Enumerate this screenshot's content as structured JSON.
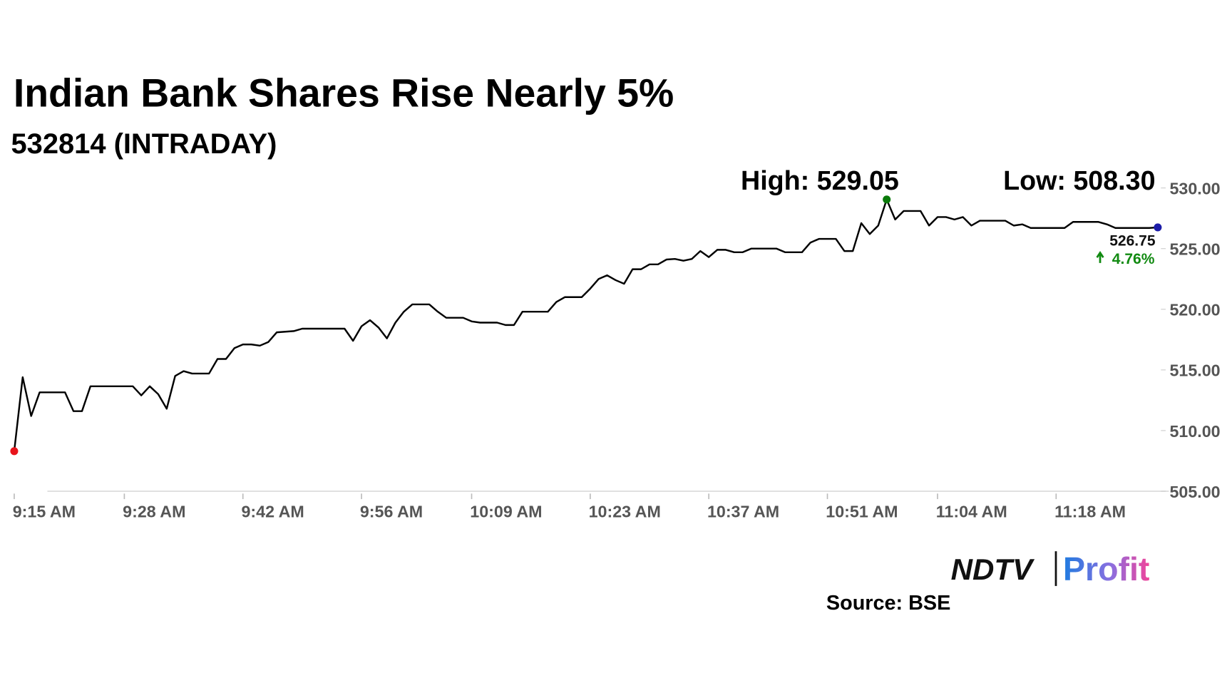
{
  "chart_data": {
    "type": "line",
    "title": "Indian Bank Shares Rise Nearly 5%",
    "subtitle": "532814 (INTRADAY)",
    "high_label": "High: 529.05",
    "low_label": "Low: 508.30",
    "last_label": "526.75",
    "change_label": "4.76%",
    "logo": [
      "NDTV",
      "Profit"
    ],
    "source": "Source: BSE",
    "color": "#000000",
    "marker_colors": {
      "start": "#e8141b",
      "high": "#0a7a0a",
      "last": "#1c1ca8"
    },
    "change_color": "#118a11",
    "categories": [
      "9:15 AM",
      null,
      null,
      null,
      null,
      null,
      null,
      null,
      null,
      null,
      null,
      null,
      null,
      "9:28 AM",
      null,
      null,
      null,
      null,
      null,
      null,
      null,
      null,
      null,
      null,
      null,
      null,
      null,
      "9:42 AM",
      null,
      null,
      null,
      null,
      null,
      null,
      null,
      null,
      null,
      null,
      null,
      null,
      null,
      "9:56 AM",
      null,
      null,
      null,
      null,
      null,
      null,
      null,
      null,
      null,
      null,
      null,
      null,
      "10:09 AM",
      null,
      null,
      null,
      null,
      null,
      null,
      null,
      null,
      null,
      null,
      null,
      null,
      null,
      "10:23 AM",
      null,
      null,
      null,
      null,
      null,
      null,
      null,
      null,
      null,
      null,
      null,
      null,
      null,
      "10:37 AM",
      null,
      null,
      null,
      null,
      null,
      null,
      null,
      null,
      null,
      null,
      null,
      null,
      null,
      "10:51 AM",
      null,
      null,
      null,
      null,
      null,
      null,
      null,
      null,
      null,
      null,
      null,
      null,
      "11:04 AM",
      null,
      null,
      null,
      null,
      null,
      null,
      null,
      null,
      null,
      null,
      null,
      null,
      null,
      "11:18 AM",
      null,
      null,
      null,
      null,
      null,
      null,
      null,
      null,
      null,
      null,
      null,
      null
    ],
    "values": [
      508.3,
      514.4,
      511.2,
      513.15,
      513.15,
      513.15,
      513.15,
      511.6,
      511.6,
      513.65,
      513.65,
      513.65,
      513.65,
      513.65,
      513.65,
      512.9,
      513.65,
      513.0,
      511.8,
      514.5,
      514.9,
      514.7,
      514.7,
      514.7,
      515.9,
      515.9,
      516.8,
      517.1,
      517.1,
      517.0,
      517.3,
      518.1,
      518.15,
      518.2,
      518.4,
      518.4,
      518.4,
      518.4,
      518.4,
      518.4,
      517.4,
      518.6,
      519.1,
      518.5,
      517.6,
      518.9,
      519.8,
      520.4,
      520.4,
      520.4,
      519.8,
      519.3,
      519.3,
      519.3,
      519.0,
      518.9,
      518.9,
      518.9,
      518.7,
      518.7,
      519.8,
      519.8,
      519.8,
      519.8,
      520.6,
      521.0,
      521.0,
      521.0,
      521.7,
      522.5,
      522.8,
      522.4,
      522.1,
      523.3,
      523.3,
      523.7,
      523.7,
      524.1,
      524.15,
      524.0,
      524.15,
      524.8,
      524.3,
      524.9,
      524.9,
      524.7,
      524.7,
      525.0,
      525.0,
      525.0,
      525.0,
      524.7,
      524.7,
      524.7,
      525.5,
      525.8,
      525.8,
      525.8,
      524.8,
      524.8,
      527.1,
      526.2,
      526.9,
      529.05,
      527.4,
      528.1,
      528.1,
      528.1,
      526.9,
      527.6,
      527.6,
      527.4,
      527.6,
      526.9,
      527.3,
      527.3,
      527.3,
      527.3,
      526.9,
      527.0,
      526.7,
      526.7,
      526.7,
      526.7,
      526.7,
      527.2,
      527.2,
      527.2,
      527.2,
      527.0,
      526.7,
      526.7,
      526.7,
      526.7,
      526.7,
      526.75
    ],
    "ylim": [
      505,
      530
    ],
    "yticks": [
      {
        "value": 505,
        "label": "505.00"
      },
      {
        "value": 510,
        "label": "510.00"
      },
      {
        "value": 515,
        "label": "515.00"
      },
      {
        "value": 520,
        "label": "520.00"
      },
      {
        "value": 525,
        "label": "525.00"
      },
      {
        "value": 530,
        "label": "530.00"
      }
    ]
  }
}
